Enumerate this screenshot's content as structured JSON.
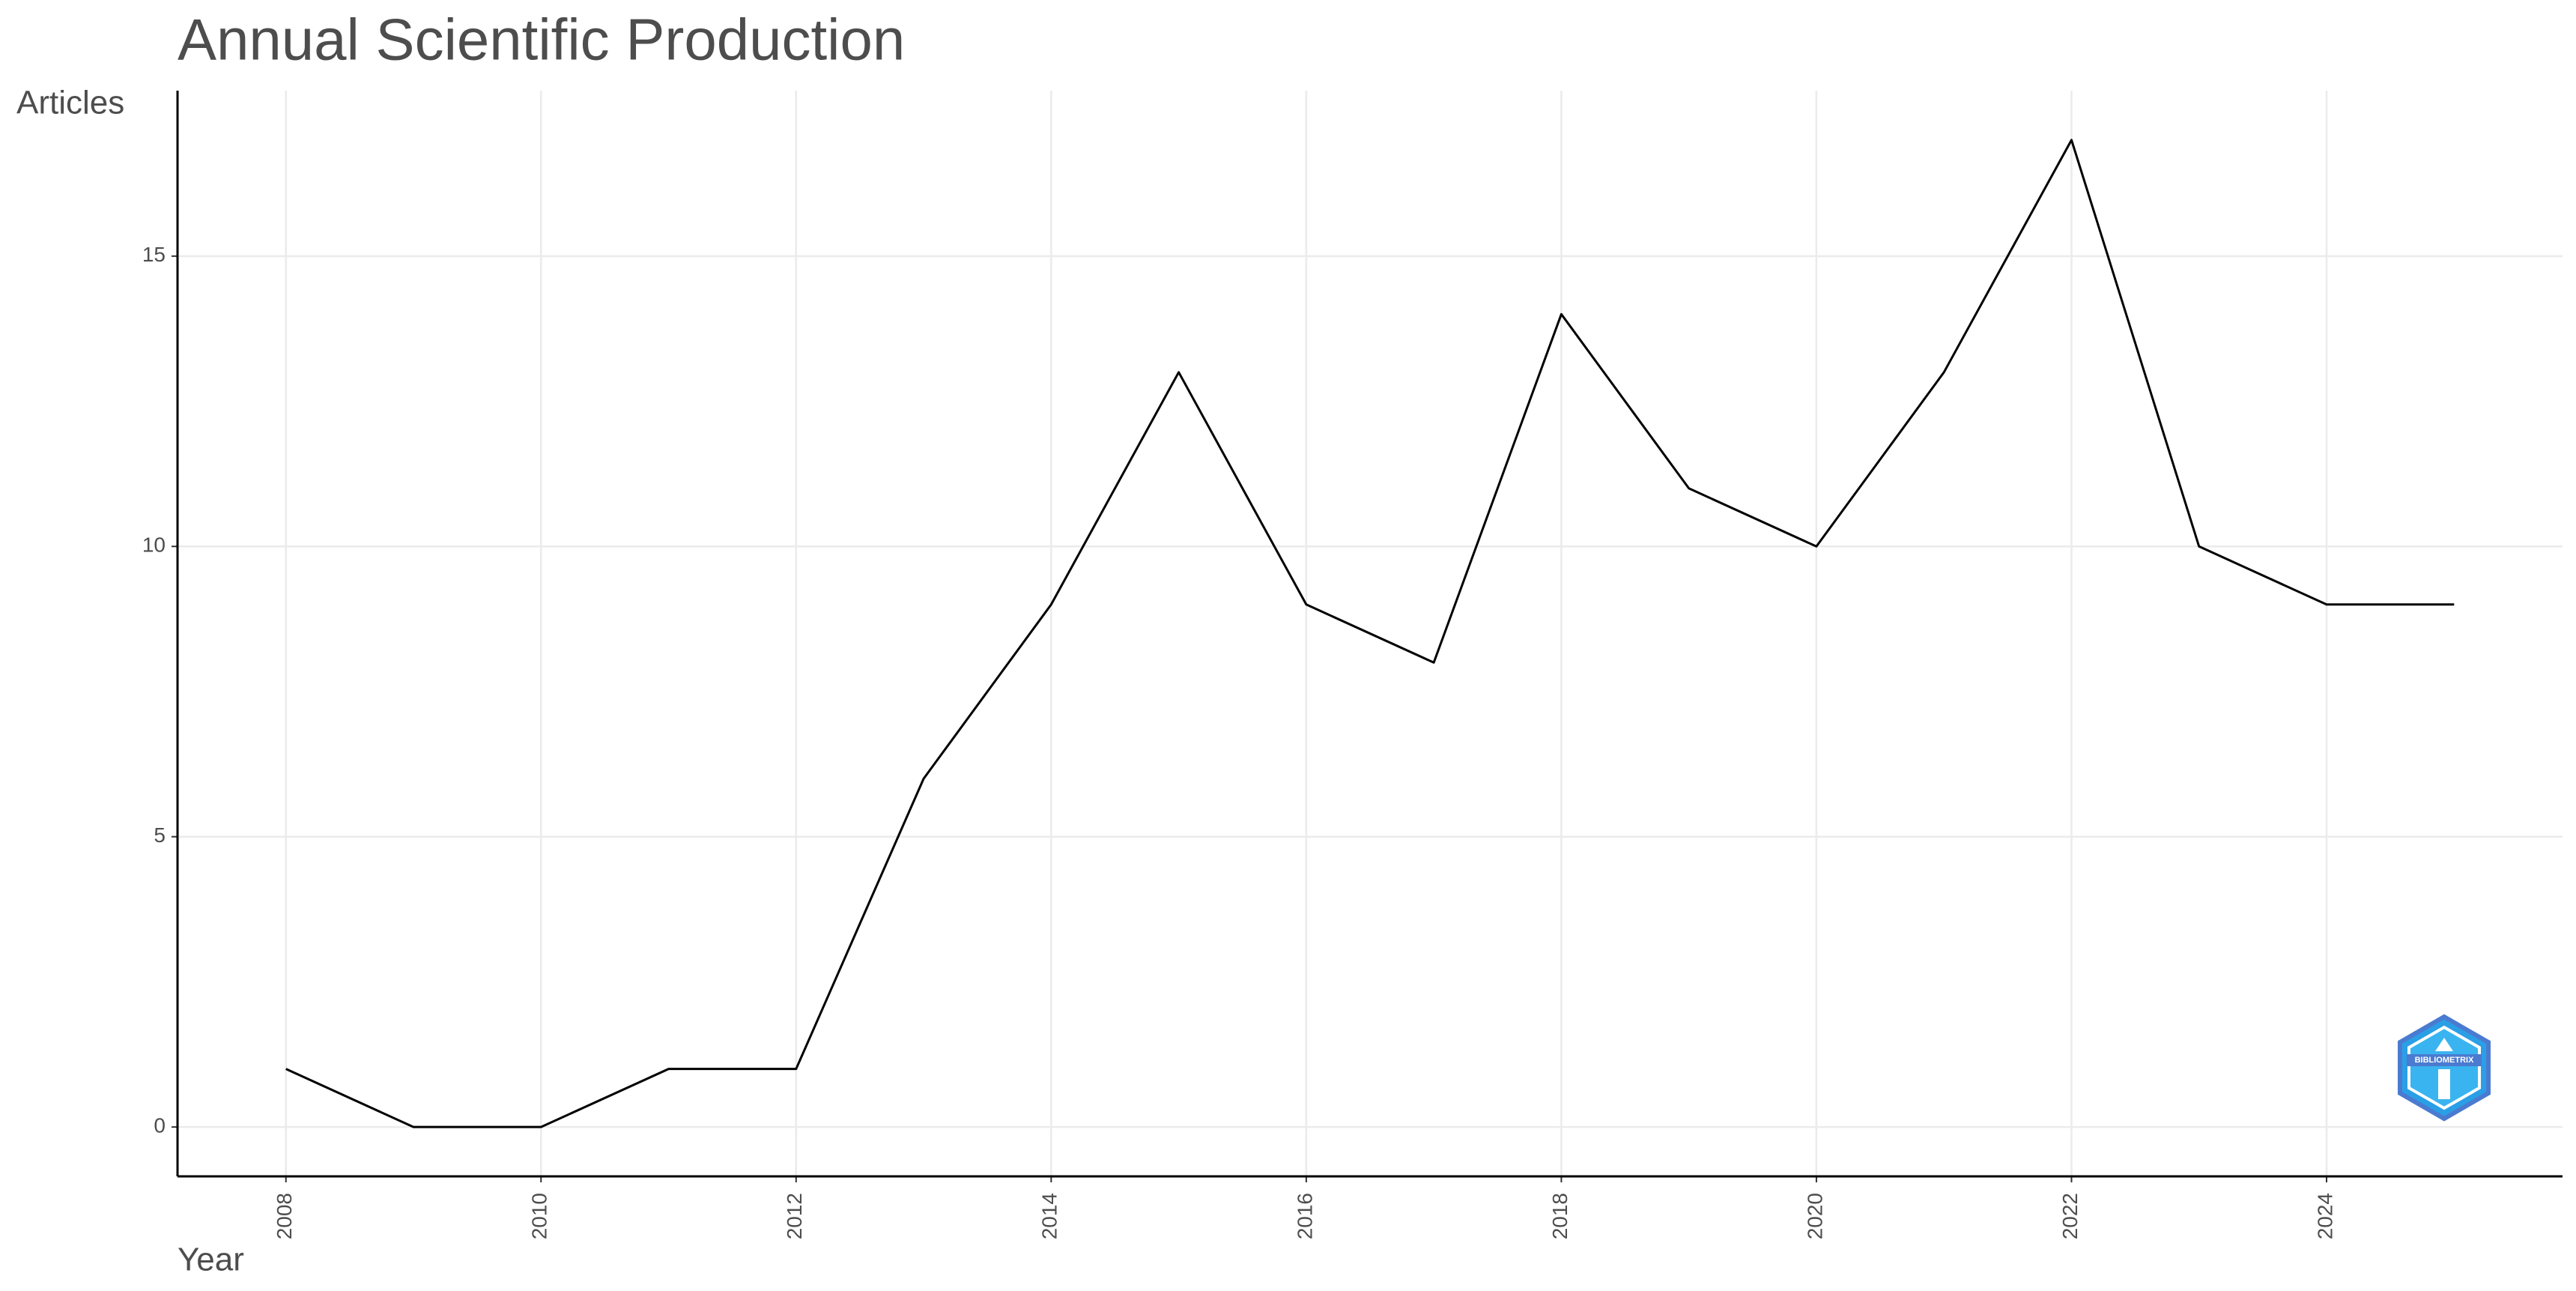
{
  "chart_data": {
    "type": "line",
    "title": "Annual Scientific Production",
    "x_label": "Year",
    "y_label": "Articles",
    "x": [
      2008,
      2009,
      2010,
      2011,
      2012,
      2013,
      2014,
      2015,
      2016,
      2017,
      2018,
      2019,
      2020,
      2021,
      2022,
      2023,
      2024,
      2025
    ],
    "values": [
      1,
      0,
      0,
      1,
      1,
      6,
      9,
      13,
      9,
      8,
      14,
      11,
      10,
      13,
      17,
      10,
      9,
      9
    ],
    "color": "#000000",
    "xlim": [
      2007.15,
      2025.85
    ],
    "ylim": [
      -0.85,
      17.85
    ],
    "xticks": [
      2008,
      2010,
      2012,
      2014,
      2016,
      2018,
      2020,
      2022,
      2024
    ],
    "yticks": [
      0,
      5,
      10,
      15
    ],
    "grid": true,
    "logo_text": "BIBLIOMETRIX"
  }
}
